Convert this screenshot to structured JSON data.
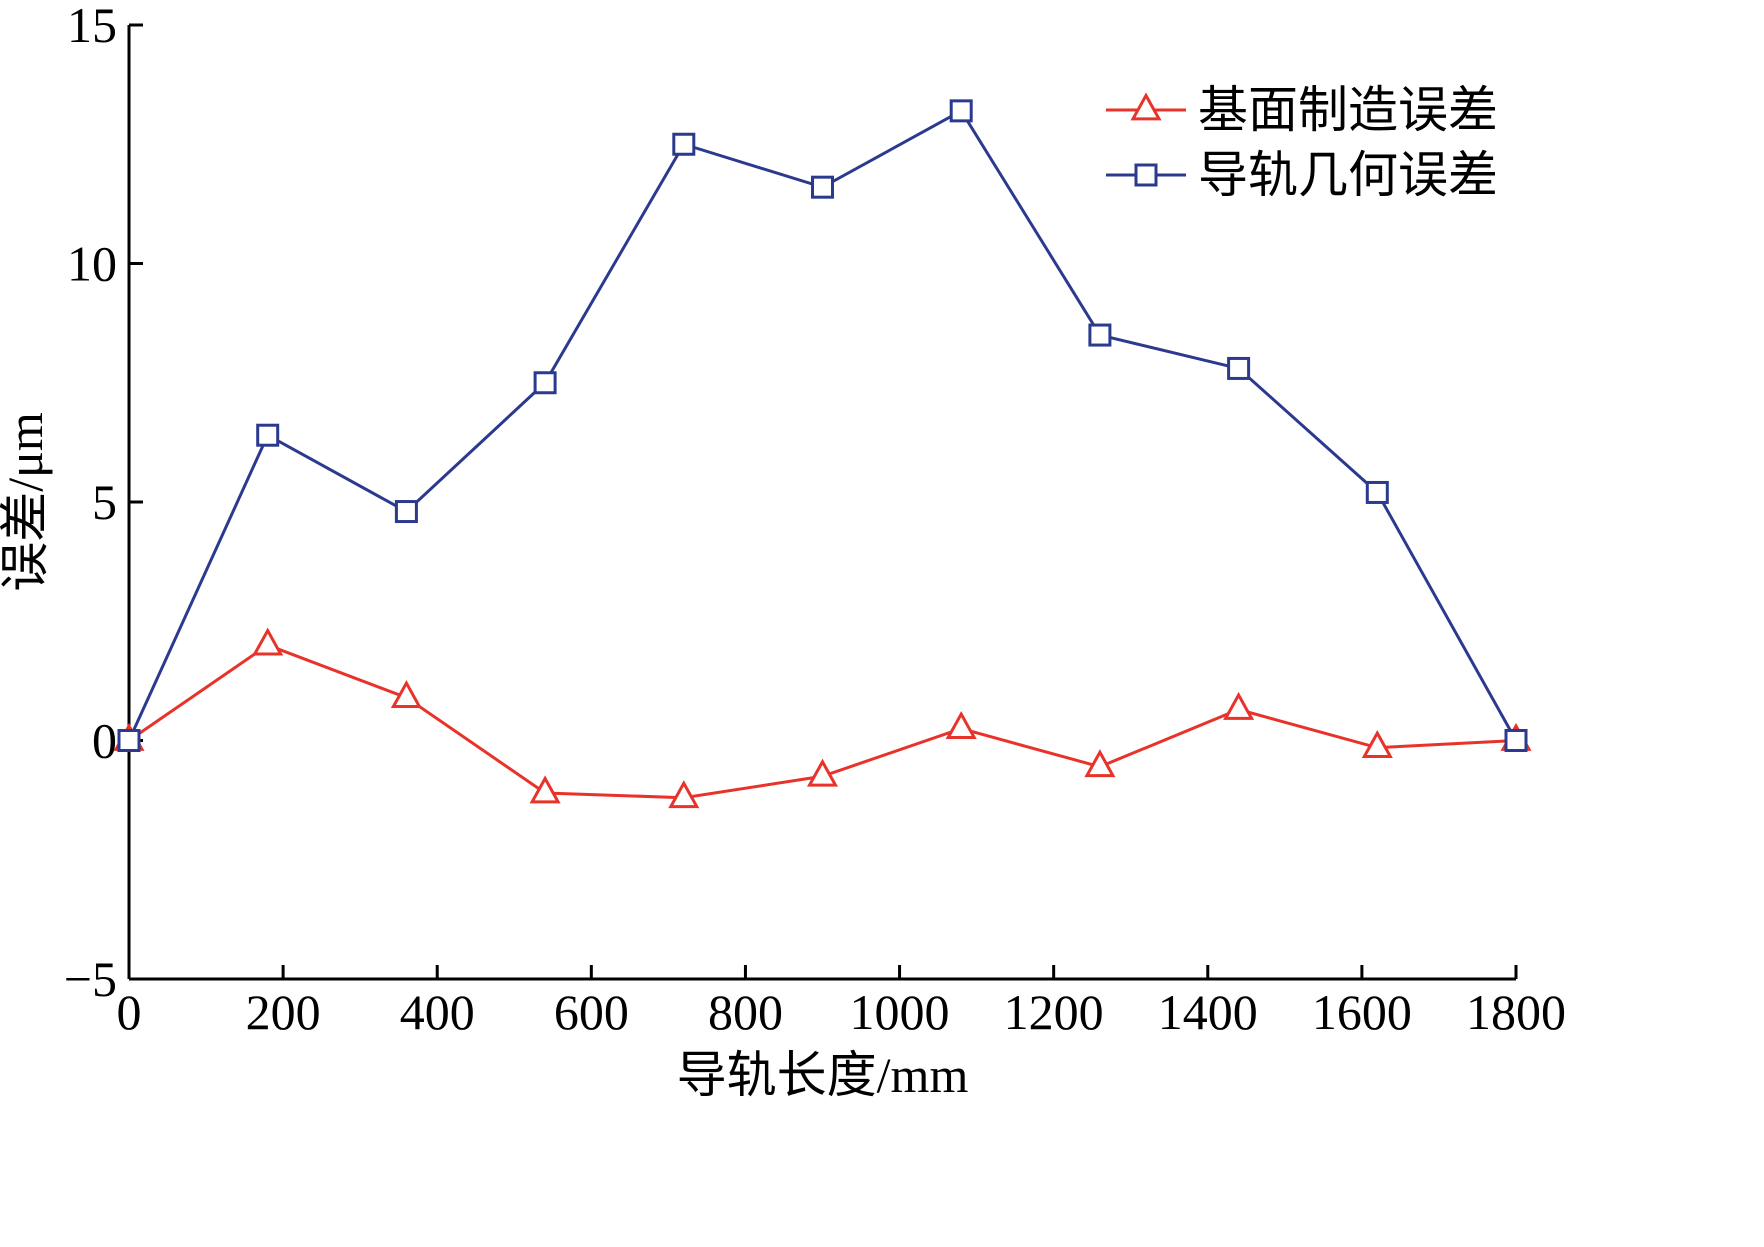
{
  "chart_data": {
    "type": "line",
    "xlabel": "导轨长度/mm",
    "ylabel": "误差/μm",
    "xlim": [
      0,
      1800
    ],
    "ylim": [
      -5,
      15
    ],
    "xticks": [
      "0",
      "200",
      "400",
      "600",
      "800",
      "1000",
      "1200",
      "1400",
      "1600",
      "1800"
    ],
    "yticks": [
      "−5",
      "0",
      "5",
      "10",
      "15"
    ],
    "grid": false,
    "legend_position": "top-right",
    "x": [
      0,
      180,
      360,
      540,
      720,
      900,
      1080,
      1260,
      1440,
      1620,
      1800
    ],
    "series": [
      {
        "name": "基面制造误差",
        "color": "#e8332a",
        "marker": "triangle",
        "values": [
          0,
          2.0,
          0.9,
          -1.1,
          -1.2,
          -0.75,
          0.25,
          -0.55,
          0.65,
          -0.15,
          0
        ]
      },
      {
        "name": "导轨几何误差",
        "color": "#2b3a8f",
        "marker": "square",
        "values": [
          0,
          6.4,
          4.8,
          7.5,
          12.5,
          11.6,
          13.2,
          8.5,
          7.8,
          5.2,
          0
        ]
      }
    ]
  }
}
